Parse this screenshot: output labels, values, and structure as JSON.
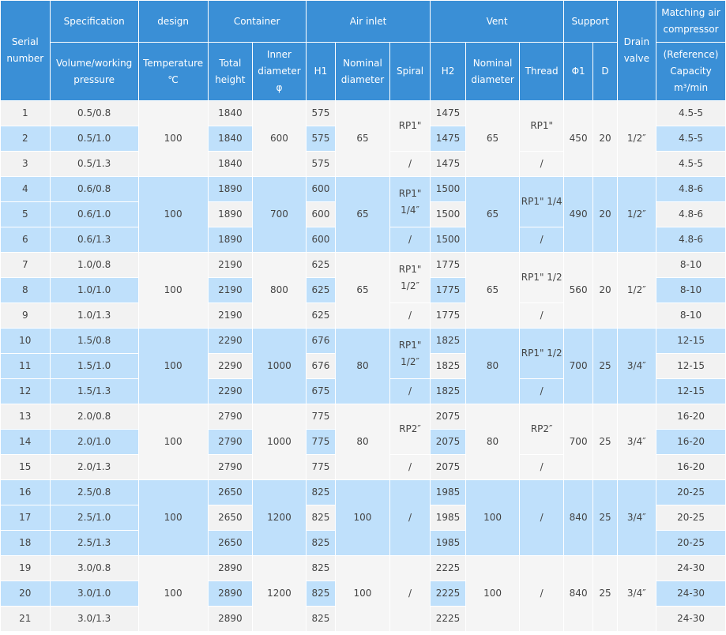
{
  "header": {
    "serial": "Serial number",
    "spec": "Specification",
    "design": "design",
    "container": "Container",
    "air_inlet": "Air inlet",
    "vent": "Vent",
    "support": "Support",
    "drain": "Drain valve",
    "matching": "Matching air compressor",
    "vol": "Volume/working pressure",
    "temp": "Temperature ℃",
    "total_height": "Total height",
    "inner_diam": "Inner diameter φ",
    "h1": "H1",
    "nominal1": "Nominal diameter",
    "spiral": "Spiral",
    "h2": "H2",
    "nominal2": "Nominal diameter",
    "thread": "Thread",
    "phi1": "Φ1",
    "d": "D",
    "capacity": "(Reference) Capacity m³/min"
  },
  "groups": [
    {
      "temp": "100",
      "diameter": "600",
      "nom_in": "65",
      "spiral": "RP1\"",
      "spiral3": "/",
      "nom_vent": "65",
      "thread": "RP1\"",
      "thread3": "/",
      "phi1": "450",
      "d": "20",
      "drain": "1/2″",
      "rows": [
        {
          "serial": "1",
          "spec": "0.5/0.8",
          "height": "1840",
          "h1": "575",
          "h2": "1475",
          "cap": "4.5-5"
        },
        {
          "serial": "2",
          "spec": "0.5/1.0",
          "height": "1840",
          "h1": "575",
          "h2": "1475",
          "cap": "4.5-5"
        },
        {
          "serial": "3",
          "spec": "0.5/1.3",
          "height": "1840",
          "h1": "575",
          "h2": "1475",
          "cap": "4.5-5"
        }
      ]
    },
    {
      "temp": "100",
      "diameter": "700",
      "nom_in": "65",
      "spiral": "RP1\" 1/4″",
      "spiral3": "/",
      "nom_vent": "65",
      "thread": "RP1\" 1/4",
      "thread3": "/",
      "phi1": "490",
      "d": "20",
      "drain": "1/2″",
      "rows": [
        {
          "serial": "4",
          "spec": "0.6/0.8",
          "height": "1890",
          "h1": "600",
          "h2": "1500",
          "cap": "4.8-6"
        },
        {
          "serial": "5",
          "spec": "0.6/1.0",
          "height": "1890",
          "h1": "600",
          "h2": "1500",
          "cap": "4.8-6"
        },
        {
          "serial": "6",
          "spec": "0.6/1.3",
          "height": "1890",
          "h1": "600",
          "h2": "1500",
          "cap": "4.8-6"
        }
      ]
    },
    {
      "temp": "100",
      "diameter": "800",
      "nom_in": "65",
      "spiral": "RP1\" 1/2″",
      "spiral3": "/",
      "nom_vent": "65",
      "thread": "RP1\" 1/2",
      "thread3": "/",
      "phi1": "560",
      "d": "20",
      "drain": "1/2″",
      "rows": [
        {
          "serial": "7",
          "spec": "1.0/0.8",
          "height": "2190",
          "h1": "625",
          "h2": "1775",
          "cap": "8-10"
        },
        {
          "serial": "8",
          "spec": "1.0/1.0",
          "height": "2190",
          "h1": "625",
          "h2": "1775",
          "cap": "8-10"
        },
        {
          "serial": "9",
          "spec": "1.0/1.3",
          "height": "2190",
          "h1": "625",
          "h2": "1775",
          "cap": "8-10"
        }
      ]
    },
    {
      "temp": "100",
      "diameter": "1000",
      "nom_in": "80",
      "spiral": "RP1\" 1/2″",
      "spiral3": "/",
      "nom_vent": "80",
      "thread": "RP1\" 1/2",
      "thread3": "/",
      "phi1": "700",
      "d": "25",
      "drain": "3/4″",
      "rows": [
        {
          "serial": "10",
          "spec": "1.5/0.8",
          "height": "2290",
          "h1": "676",
          "h2": "1825",
          "cap": "12-15"
        },
        {
          "serial": "11",
          "spec": "1.5/1.0",
          "height": "2290",
          "h1": "676",
          "h2": "1825",
          "cap": "12-15"
        },
        {
          "serial": "12",
          "spec": "1.5/1.3",
          "height": "2290",
          "h1": "675",
          "h2": "1825",
          "cap": "12-15"
        }
      ]
    },
    {
      "temp": "100",
      "diameter": "1000",
      "nom_in": "80",
      "spiral": "RP2″",
      "spiral3": "/",
      "nom_vent": "80",
      "thread": "RP2″",
      "thread3": "/",
      "phi1": "700",
      "d": "25",
      "drain": "3/4″",
      "rows": [
        {
          "serial": "13",
          "spec": "2.0/0.8",
          "height": "2790",
          "h1": "775",
          "h2": "2075",
          "cap": "16-20"
        },
        {
          "serial": "14",
          "spec": "2.0/1.0",
          "height": "2790",
          "h1": "775",
          "h2": "2075",
          "cap": "16-20"
        },
        {
          "serial": "15",
          "spec": "2.0/1.3",
          "height": "2790",
          "h1": "775",
          "h2": "2075",
          "cap": "16-20"
        }
      ]
    },
    {
      "temp": "100",
      "diameter": "1200",
      "nom_in": "100",
      "spiral": "/",
      "spiral3": "",
      "nom_vent": "100",
      "thread": "/",
      "thread3": "",
      "phi1": "840",
      "d": "25",
      "drain": "3/4″",
      "rows": [
        {
          "serial": "16",
          "spec": "2.5/0.8",
          "height": "2650",
          "h1": "825",
          "h2": "1985",
          "cap": "20-25"
        },
        {
          "serial": "17",
          "spec": "2.5/1.0",
          "height": "2650",
          "h1": "825",
          "h2": "1985",
          "cap": "20-25"
        },
        {
          "serial": "18",
          "spec": "2.5/1.3",
          "height": "2650",
          "h1": "825",
          "h2": "1985",
          "cap": "20-25"
        }
      ]
    },
    {
      "temp": "100",
      "diameter": "1200",
      "nom_in": "100",
      "spiral": "/",
      "spiral3": "",
      "nom_vent": "100",
      "thread": "/",
      "thread3": "",
      "phi1": "840",
      "d": "25",
      "drain": "3/4″",
      "rows": [
        {
          "serial": "19",
          "spec": "3.0/0.8",
          "height": "2890",
          "h1": "825",
          "h2": "2225",
          "cap": "24-30"
        },
        {
          "serial": "20",
          "spec": "3.0/1.0",
          "height": "2890",
          "h1": "825",
          "h2": "2225",
          "cap": "24-30"
        },
        {
          "serial": "21",
          "spec": "3.0/1.3",
          "height": "2890",
          "h1": "825",
          "h2": "2225",
          "cap": "24-30"
        }
      ]
    }
  ]
}
